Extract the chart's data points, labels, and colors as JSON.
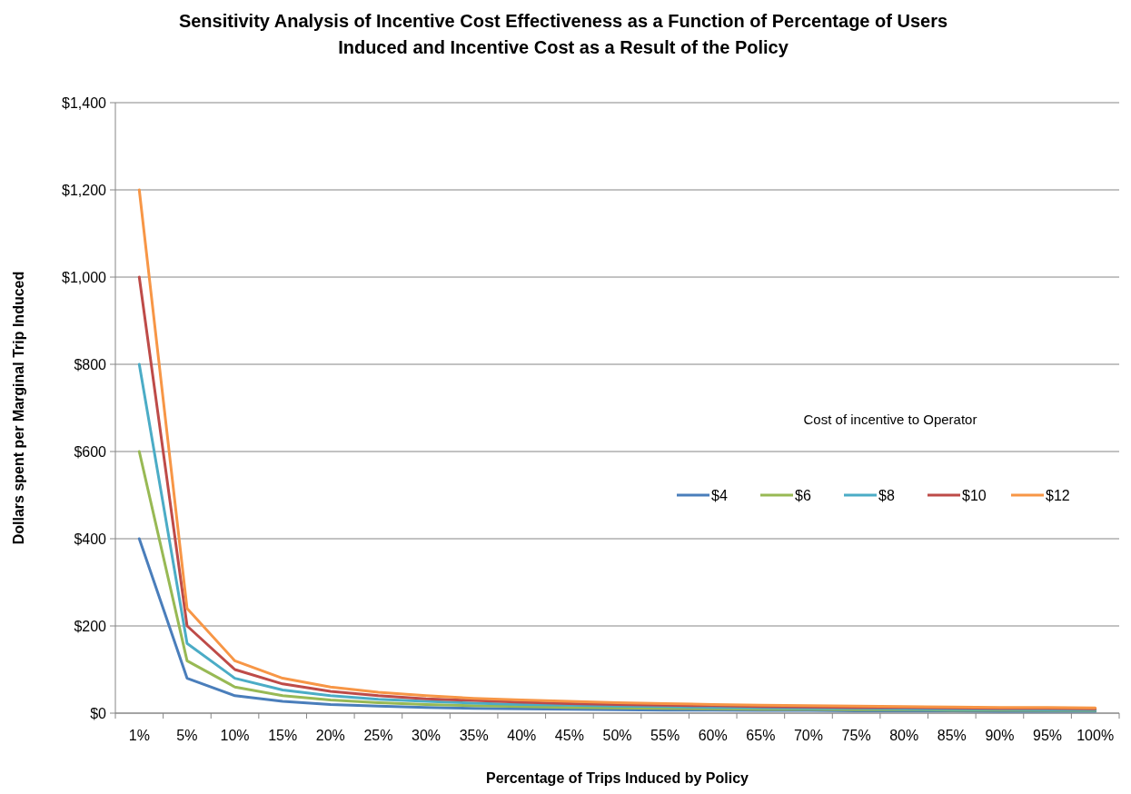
{
  "chart_data": {
    "type": "line",
    "title": "Sensitivity Analysis of Incentive Cost Effectiveness as a Function of Percentage of Users Induced and Incentive Cost as a Result of the Policy",
    "xlabel": "Percentage of Trips Induced by Policy",
    "ylabel": "Dollars spent per Marginal Trip Induced",
    "legend_title": "Cost of incentive to Operator",
    "categories": [
      "1%",
      "5%",
      "10%",
      "15%",
      "20%",
      "25%",
      "30%",
      "35%",
      "40%",
      "45%",
      "50%",
      "55%",
      "60%",
      "65%",
      "70%",
      "75%",
      "80%",
      "85%",
      "90%",
      "95%",
      "100%"
    ],
    "series": [
      {
        "name": "$4",
        "color": "#4a7ebb",
        "values": [
          400,
          80,
          40,
          27,
          20,
          16,
          13,
          11,
          10,
          9,
          8,
          7,
          7,
          6,
          6,
          5,
          5,
          5,
          4,
          4,
          4
        ]
      },
      {
        "name": "$6",
        "color": "#98b954",
        "values": [
          600,
          120,
          60,
          40,
          30,
          24,
          20,
          17,
          15,
          13,
          12,
          11,
          10,
          9,
          9,
          8,
          8,
          7,
          7,
          6,
          6
        ]
      },
      {
        "name": "$8",
        "color": "#4bacc6",
        "values": [
          800,
          160,
          80,
          53,
          40,
          32,
          27,
          23,
          20,
          18,
          16,
          15,
          13,
          12,
          11,
          11,
          10,
          9,
          9,
          8,
          8
        ]
      },
      {
        "name": "$10",
        "color": "#be4b48",
        "values": [
          1000,
          200,
          100,
          67,
          50,
          40,
          33,
          29,
          25,
          22,
          20,
          18,
          17,
          15,
          14,
          13,
          13,
          12,
          11,
          11,
          10
        ]
      },
      {
        "name": "$12",
        "color": "#f79646",
        "values": [
          1200,
          240,
          120,
          80,
          60,
          48,
          40,
          34,
          30,
          27,
          24,
          22,
          20,
          18,
          17,
          16,
          15,
          14,
          13,
          13,
          12
        ]
      }
    ],
    "ylim": [
      0,
      1400
    ],
    "yticks": [
      {
        "value": 0,
        "label": "$0"
      },
      {
        "value": 200,
        "label": "$200"
      },
      {
        "value": 400,
        "label": "$400"
      },
      {
        "value": 600,
        "label": "$600"
      },
      {
        "value": 800,
        "label": "$800"
      },
      {
        "value": 1000,
        "label": "$1,000"
      },
      {
        "value": 1200,
        "label": "$1,200"
      },
      {
        "value": 1400,
        "label": "$1,400"
      }
    ],
    "grid": "y",
    "legend": "right",
    "marker": "none",
    "line_style": "solid"
  }
}
